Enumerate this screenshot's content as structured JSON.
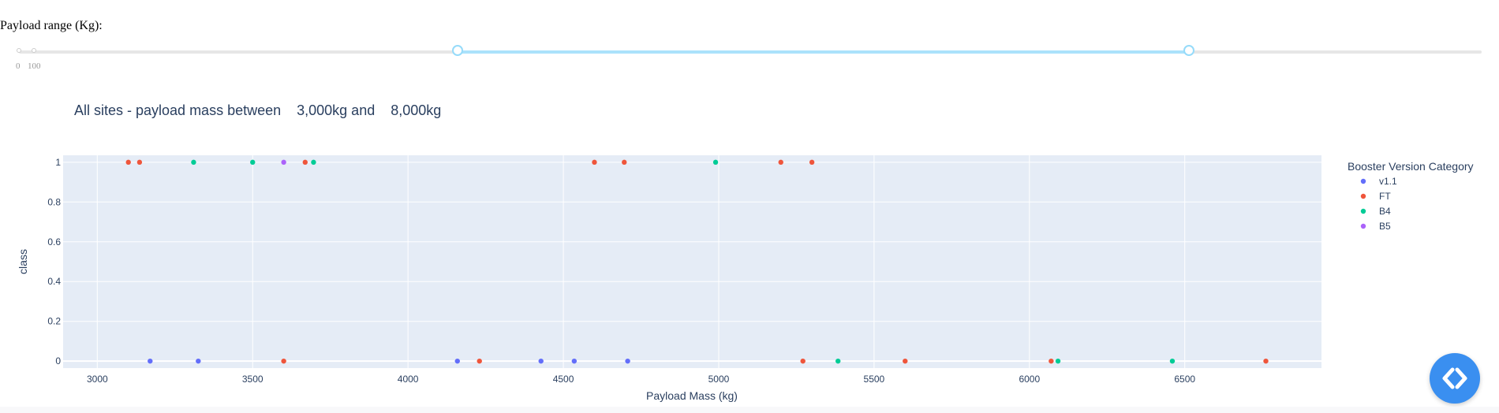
{
  "slider": {
    "label": "Payload range (Kg):",
    "min": 0,
    "max": 10000,
    "range_low": 3000,
    "range_high": 8000,
    "marks": [
      "0",
      "100"
    ]
  },
  "chart_data": {
    "type": "scatter",
    "title": "All sites - payload mass between    3,000kg and    8,000kg",
    "xlabel": "Payload Mass (kg)",
    "ylabel": "class",
    "xlim": [
      2890,
      6940
    ],
    "ylim": [
      -0.035,
      1.035
    ],
    "x_ticks": [
      3000,
      3500,
      4000,
      4500,
      5000,
      5500,
      6000,
      6500
    ],
    "y_ticks": [
      0,
      0.2,
      0.4,
      0.6,
      0.8,
      1
    ],
    "x_tick_labels": [
      "3000",
      "3500",
      "4000",
      "4500",
      "5000",
      "5500",
      "6000",
      "6500"
    ],
    "y_tick_labels": [
      "0",
      "0.2",
      "0.4",
      "0.6",
      "0.8",
      "1"
    ],
    "grid": true,
    "legend_title": "Booster Version Category",
    "legend_position": "right",
    "series": [
      {
        "name": "v1.1",
        "color": "#636efa",
        "points": [
          [
            3170,
            0
          ],
          [
            3325,
            0
          ],
          [
            4159,
            0
          ],
          [
            4428,
            0
          ],
          [
            4535,
            0
          ],
          [
            4707,
            0
          ]
        ]
      },
      {
        "name": "FT",
        "color": "#ef553b",
        "points": [
          [
            3100,
            1
          ],
          [
            3136,
            1
          ],
          [
            3669,
            1
          ],
          [
            4600,
            1
          ],
          [
            4696,
            1
          ],
          [
            5200,
            1
          ],
          [
            5300,
            1
          ],
          [
            3600,
            0
          ],
          [
            4230,
            0
          ],
          [
            5271,
            0
          ],
          [
            5600,
            0
          ],
          [
            6070,
            0
          ],
          [
            6761,
            0
          ]
        ]
      },
      {
        "name": "B4",
        "color": "#00cc96",
        "points": [
          [
            3310,
            1
          ],
          [
            3500,
            1
          ],
          [
            3696,
            1
          ],
          [
            4990,
            1
          ],
          [
            5384,
            0
          ],
          [
            6092,
            0
          ],
          [
            6460,
            0
          ]
        ]
      },
      {
        "name": "B5",
        "color": "#ab63fa",
        "points": [
          [
            3600,
            1
          ]
        ]
      }
    ]
  },
  "icons": {
    "fab": "code-brackets-icon"
  }
}
